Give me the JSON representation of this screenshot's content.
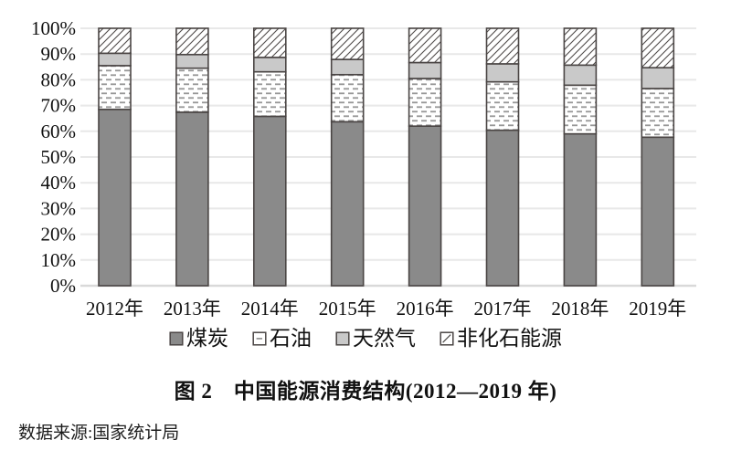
{
  "figure": {
    "title": "图 2　中国能源消费结构(2012—2019 年)",
    "source": "数据来源:国家统计局"
  },
  "chart_data": {
    "type": "bar",
    "stacked": true,
    "title": "图 2 中国能源消费结构(2012—2019 年)",
    "xlabel": "",
    "ylabel": "",
    "ylim": [
      0,
      100
    ],
    "grid": true,
    "legend_position": "bottom",
    "categories": [
      "2012年",
      "2013年",
      "2014年",
      "2015年",
      "2016年",
      "2017年",
      "2018年",
      "2019年"
    ],
    "y_ticks": [
      "0%",
      "10%",
      "20%",
      "30%",
      "40%",
      "50%",
      "60%",
      "70%",
      "80%",
      "90%",
      "100%"
    ],
    "series": [
      {
        "key": "coal",
        "name": "煤炭",
        "pattern": "solid",
        "fill": "#8a8a8a",
        "values": [
          68.5,
          67.4,
          65.8,
          63.7,
          62.0,
          60.4,
          59.0,
          57.7
        ]
      },
      {
        "key": "oil",
        "name": "石油",
        "pattern": "dash",
        "fill": "#ffffff",
        "values": [
          17.0,
          17.1,
          17.3,
          18.3,
          18.5,
          18.8,
          18.9,
          18.9
        ]
      },
      {
        "key": "gas",
        "name": "天然气",
        "pattern": "solid",
        "fill": "#c9c9c9",
        "values": [
          4.8,
          5.3,
          5.6,
          5.9,
          6.2,
          7.0,
          7.8,
          8.1
        ]
      },
      {
        "key": "nonfossil",
        "name": "非化石能源",
        "pattern": "hatch",
        "fill": "#ffffff",
        "values": [
          9.7,
          10.2,
          11.3,
          12.1,
          13.3,
          13.8,
          14.3,
          15.3
        ]
      }
    ],
    "colors": {
      "border": "#4a4544",
      "oil_dash": "#979797",
      "hatch_line": "#4f4b4a",
      "grid": "#e8e8e8",
      "axis": "#d9d9d9",
      "text": "#111111"
    }
  }
}
